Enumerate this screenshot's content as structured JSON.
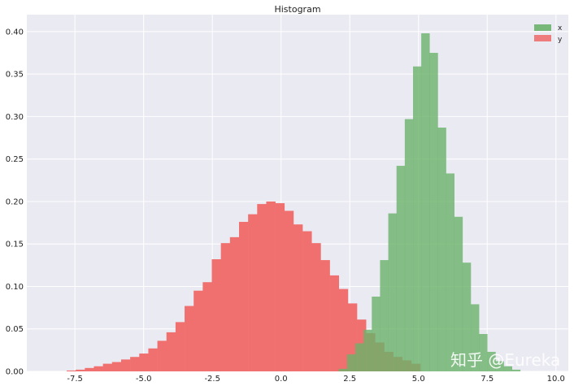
{
  "chart_data": {
    "type": "histogram",
    "title": "Histogram",
    "xlim": [
      -9.25,
      10.45
    ],
    "ylim": [
      0,
      0.42
    ],
    "x_ticks": [
      "-7.5",
      "-5.0",
      "-2.5",
      "0.0",
      "2.5",
      "5.0",
      "7.5",
      "10.0"
    ],
    "x_tick_values": [
      -7.5,
      -5.0,
      -2.5,
      0.0,
      2.5,
      5.0,
      7.5,
      10.0
    ],
    "y_ticks": [
      "0.00",
      "0.05",
      "0.10",
      "0.15",
      "0.20",
      "0.25",
      "0.30",
      "0.35",
      "0.40"
    ],
    "y_tick_values": [
      0,
      0.05,
      0.1,
      0.15,
      0.2,
      0.25,
      0.3,
      0.35,
      0.4
    ],
    "grid": true,
    "legend_position": "top-right",
    "series": [
      {
        "name": "y",
        "color": "#f07070",
        "bin_edges": [
          -7.8,
          -7.47,
          -7.14,
          -6.81,
          -6.48,
          -6.15,
          -5.82,
          -5.49,
          -5.16,
          -4.83,
          -4.5,
          -4.17,
          -3.84,
          -3.51,
          -3.18,
          -2.85,
          -2.52,
          -2.19,
          -1.86,
          -1.53,
          -1.2,
          -0.87,
          -0.54,
          -0.21,
          0.12,
          0.45,
          0.78,
          1.11,
          1.44,
          1.77,
          2.1,
          2.43,
          2.76,
          3.09,
          3.42,
          3.75,
          4.08,
          4.41,
          4.74,
          5.07
        ],
        "values": [
          0.001,
          0.002,
          0.004,
          0.006,
          0.009,
          0.011,
          0.014,
          0.017,
          0.021,
          0.027,
          0.036,
          0.046,
          0.058,
          0.077,
          0.095,
          0.105,
          0.132,
          0.151,
          0.158,
          0.176,
          0.185,
          0.197,
          0.2,
          0.198,
          0.189,
          0.173,
          0.165,
          0.151,
          0.131,
          0.113,
          0.097,
          0.08,
          0.061,
          0.045,
          0.034,
          0.023,
          0.017,
          0.013,
          0.009
        ]
      },
      {
        "name": "x",
        "color": "#6ab36a",
        "bin_edges": [
          2.1,
          2.4,
          2.7,
          3.0,
          3.3,
          3.6,
          3.9,
          4.2,
          4.5,
          4.8,
          5.1,
          5.4,
          5.7,
          6.0,
          6.3,
          6.6,
          6.9,
          7.2,
          7.5,
          7.8,
          8.1,
          8.4,
          8.7
        ],
        "values": [
          0.003,
          0.02,
          0.033,
          0.049,
          0.088,
          0.131,
          0.186,
          0.242,
          0.297,
          0.359,
          0.398,
          0.375,
          0.287,
          0.233,
          0.182,
          0.128,
          0.079,
          0.044,
          0.023,
          0.012,
          0.006,
          0.002
        ]
      }
    ]
  },
  "watermark": "知乎 @Eureka"
}
